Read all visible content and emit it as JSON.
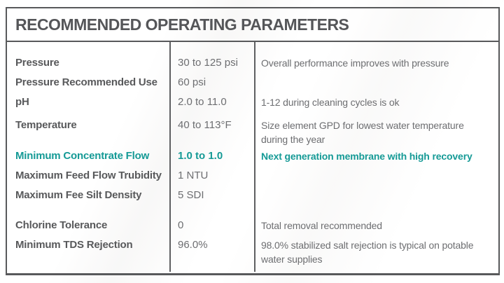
{
  "table": {
    "title": "RECOMMENDED OPERATING PARAMETERS",
    "columns": [
      "parameter",
      "value",
      "note"
    ],
    "sections": [
      {
        "rows": [
          {
            "parameter": "Pressure",
            "value": "30 to 125 psi",
            "note": "Overall performance improves with pressure",
            "highlight": false
          },
          {
            "parameter": "Pressure Recommended Use",
            "value": "60 psi",
            "note": "",
            "highlight": false
          },
          {
            "parameter": "pH",
            "value": "2.0 to 11.0",
            "note": "1-12 during cleaning cycles is ok",
            "highlight": false
          }
        ]
      },
      {
        "rows": [
          {
            "parameter": "Temperature",
            "value": "40 to 113°F",
            "note": "Size element GPD for lowest water temperature during the year",
            "highlight": false
          },
          {
            "parameter": "Minimum Concentrate Flow",
            "value": "1.0 to 1.0",
            "note": "Next generation membrane with high recovery",
            "highlight": true
          },
          {
            "parameter": "Maximum Feed Flow Trubidity",
            "value": "1 NTU",
            "note": "",
            "highlight": false
          },
          {
            "parameter": "Maximum Fee Silt Density",
            "value": "5 SDI",
            "note": "",
            "highlight": false
          }
        ]
      },
      {
        "rows": [
          {
            "parameter": "Chlorine Tolerance",
            "value": "0",
            "note": "Total removal recommended",
            "highlight": false
          },
          {
            "parameter": "Minimum TDS Rejection",
            "value": "96.0%",
            "note": "98.0% stabilized salt rejection is typical on potable water supplies",
            "highlight": false
          }
        ]
      }
    ]
  },
  "colors": {
    "accent_teal": "#159A96",
    "text_dark": "#58595B",
    "text_gray": "#6D6E71",
    "border_dark": "#58595B"
  }
}
